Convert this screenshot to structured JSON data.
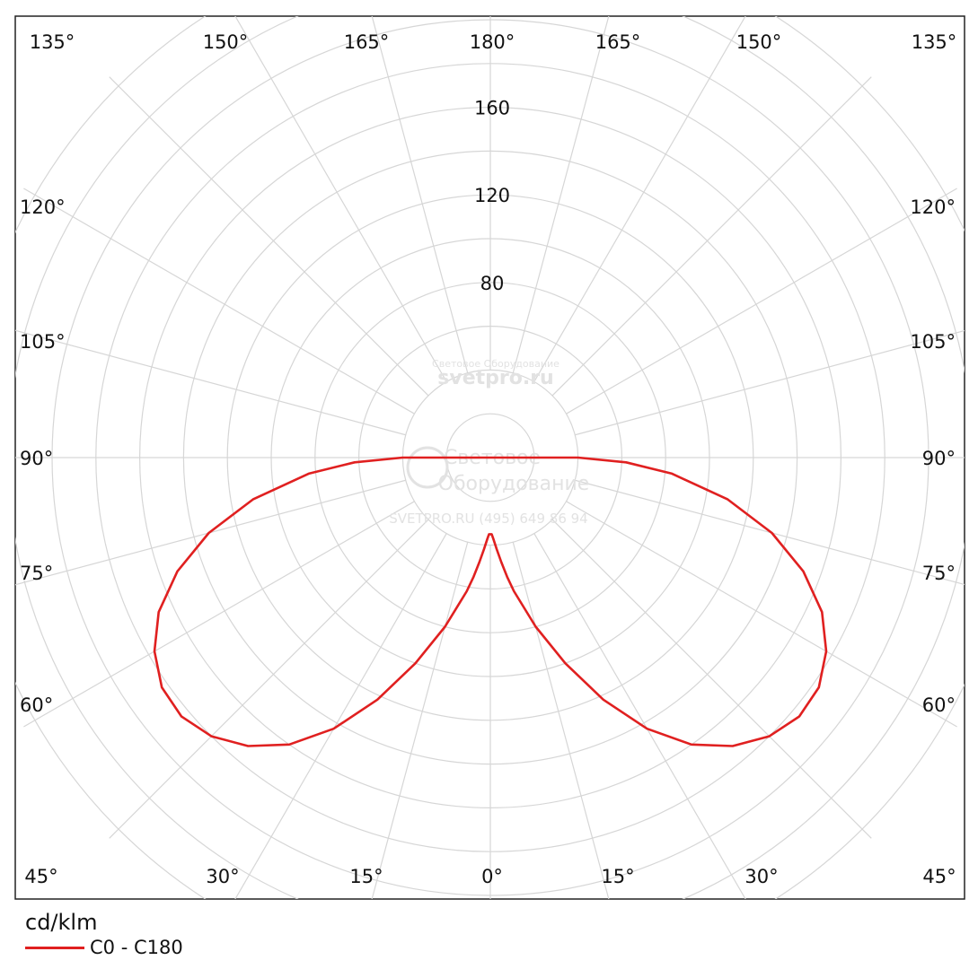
{
  "chart_data": {
    "type": "polar",
    "unit": "cd/klm",
    "r_ticks": [
      80,
      120,
      160
    ],
    "r_tick_labels": [
      "80",
      "120",
      "160"
    ],
    "rmax": 200,
    "angle_spokes_deg": [
      0,
      15,
      30,
      45,
      60,
      75,
      90,
      105,
      120,
      135,
      150,
      165,
      180
    ],
    "angle_labels": {
      "top": [
        "135°",
        "150°",
        "165°",
        "180°",
        "165°",
        "150°",
        "135°"
      ],
      "left": [
        "120°",
        "105°",
        "90°",
        "75°",
        "60°"
      ],
      "right": [
        "120°",
        "105°",
        "90°",
        "75°",
        "60°"
      ],
      "bottom": [
        "45°",
        "30°",
        "15°",
        "0°",
        "15°",
        "30°",
        "45°"
      ]
    },
    "series": [
      {
        "name": "C0 - C180",
        "color": "#e02020",
        "gamma_deg": [
          0,
          1,
          2,
          4,
          6,
          8,
          10,
          15,
          20,
          25,
          30,
          35,
          40,
          45,
          50,
          55,
          60,
          65,
          70,
          75,
          80,
          85,
          88,
          90
        ],
        "intensity": [
          35,
          35,
          37,
          42,
          48,
          55,
          62,
          80,
          100,
          122,
          143,
          160,
          172,
          180,
          184,
          183,
          177,
          167,
          152,
          133,
          110,
          83,
          62,
          40
        ]
      }
    ]
  },
  "watermark": {
    "line1": "Световое Оборудование",
    "line2": "svetpro.ru",
    "line3": "Световое",
    "line4": "Оборудование",
    "line5": "SVETPRO.RU   (495) 649 86 94"
  }
}
